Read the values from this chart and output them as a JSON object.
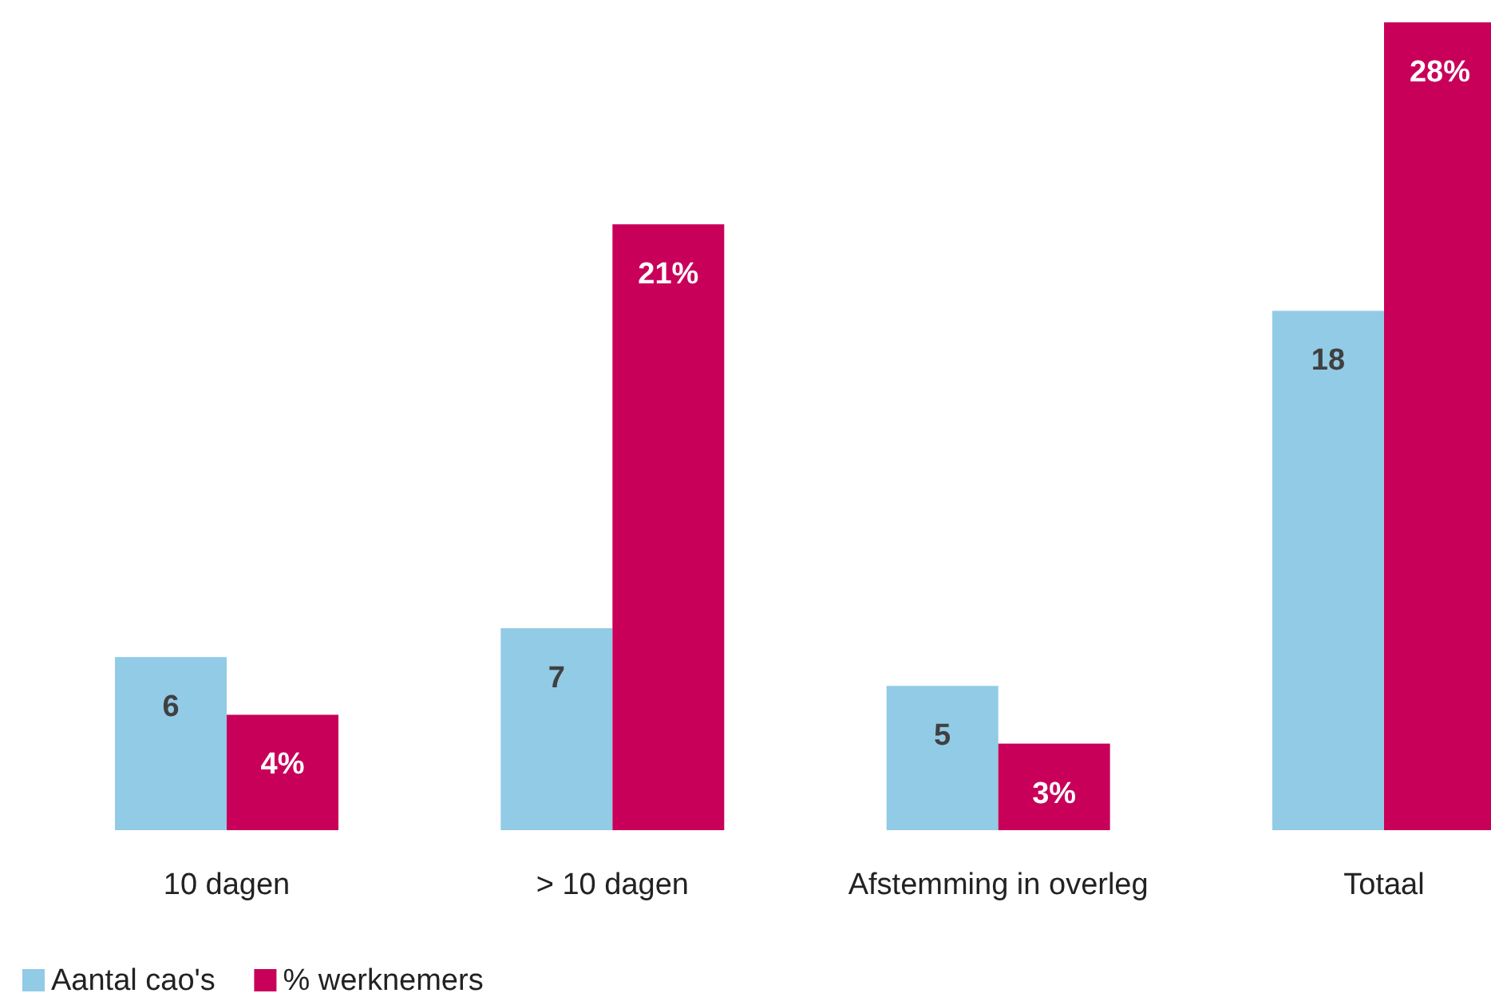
{
  "chart_data": {
    "type": "bar",
    "categories": [
      "10 dagen",
      "> 10 dagen",
      "Afstemming in overleg",
      "Totaal"
    ],
    "series": [
      {
        "name": "Aantal cao's",
        "color": "#92cbe6",
        "values": [
          6,
          7,
          5,
          18
        ],
        "value_labels": [
          "6",
          "7",
          "5",
          "18"
        ]
      },
      {
        "name": "% werknemers",
        "color": "#c8005a",
        "values": [
          4,
          21,
          3,
          28
        ],
        "value_labels": [
          "4%",
          "21%",
          "3%",
          "28%"
        ]
      }
    ],
    "ylim": [
      0,
      28
    ],
    "legend": "bottom left"
  }
}
